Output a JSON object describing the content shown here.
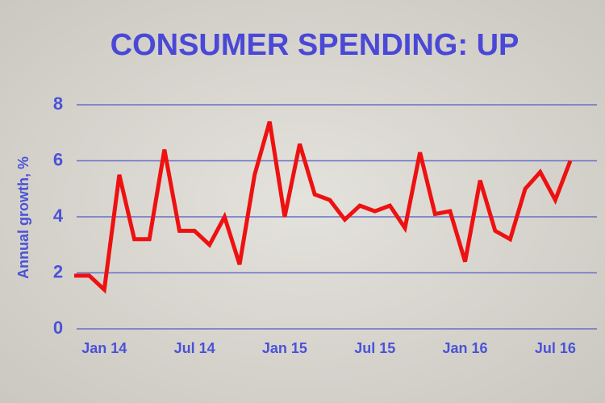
{
  "chart_data": {
    "type": "line",
    "title": "CONSUMER SPENDING: UP",
    "y_label": "Annual growth, %",
    "categories": [
      null,
      null,
      "Jan 14",
      null,
      null,
      null,
      null,
      null,
      "Jul 14",
      null,
      null,
      null,
      null,
      null,
      "Jan 15",
      null,
      null,
      null,
      null,
      null,
      "Jul 15",
      null,
      null,
      null,
      null,
      null,
      "Jan 16",
      null,
      null,
      null,
      null,
      null,
      "Jul 16",
      null
    ],
    "series": [
      {
        "name": "Annual growth",
        "color": "#ee1111",
        "values": [
          1.9,
          1.9,
          1.4,
          5.5,
          3.2,
          3.2,
          6.4,
          3.5,
          3.5,
          3.0,
          4.0,
          2.3,
          5.5,
          7.4,
          4.0,
          6.6,
          4.8,
          4.6,
          3.9,
          4.4,
          4.2,
          4.4,
          3.6,
          6.3,
          4.1,
          4.2,
          2.4,
          5.3,
          3.5,
          3.2,
          5.0,
          5.6,
          4.6,
          6.0
        ]
      }
    ],
    "ylim": [
      0,
      8
    ],
    "yticks": [
      0,
      2,
      4,
      6,
      8
    ],
    "grid": true
  }
}
